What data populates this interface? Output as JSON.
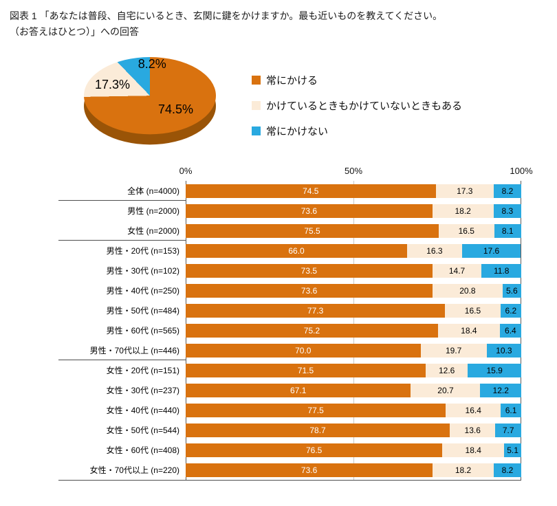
{
  "title": {
    "line1": "図表 1 「あなたは普段、自宅にいるとき、玄関に鍵をかけますか。最も近いものを教えてください。",
    "line2": "（お答えはひとつ）」への回答"
  },
  "colors": {
    "always_lock": "#D9720F",
    "sometimes": "#FBEBD8",
    "never_lock": "#29A9E0",
    "pie_depth": "#9A5407",
    "axis_line": "#595959",
    "gridline": "#C9C9C9",
    "separator": "#4D4D4D"
  },
  "legend": {
    "items": [
      {
        "label": "常にかける",
        "color": "#D9720F"
      },
      {
        "label": "かけているときもかけていないときもある",
        "color": "#FBEBD8"
      },
      {
        "label": "常にかけない",
        "color": "#29A9E0"
      }
    ]
  },
  "chart_data": [
    {
      "type": "pie",
      "style": "3d",
      "labels": [
        "常にかける",
        "かけているときもかけていないときもある",
        "常にかけない"
      ],
      "values": [
        74.5,
        17.3,
        8.2
      ],
      "unit": "%"
    },
    {
      "type": "bar",
      "stacked": true,
      "orientation": "horizontal",
      "xlim": [
        0,
        100
      ],
      "x_ticks": [
        "0%",
        "50%",
        "100%"
      ],
      "grid": "vertical-50",
      "categories": [
        "全体 (n=4000)",
        "男性 (n=2000)",
        "女性 (n=2000)",
        "男性・20代 (n=153)",
        "男性・30代 (n=102)",
        "男性・40代 (n=250)",
        "男性・50代 (n=484)",
        "男性・60代 (n=565)",
        "男性・70代以上 (n=446)",
        "女性・20代 (n=151)",
        "女性・30代 (n=237)",
        "女性・40代 (n=440)",
        "女性・50代 (n=544)",
        "女性・60代 (n=408)",
        "女性・70代以上 (n=220)"
      ],
      "series": [
        {
          "name": "常にかける",
          "values": [
            74.5,
            73.6,
            75.5,
            66.0,
            73.5,
            73.6,
            77.3,
            75.2,
            70.0,
            71.5,
            67.1,
            77.5,
            78.7,
            76.5,
            73.6
          ]
        },
        {
          "name": "かけているときもかけていないときもある",
          "values": [
            17.3,
            18.2,
            16.5,
            16.3,
            14.7,
            20.8,
            16.5,
            18.4,
            19.7,
            12.6,
            20.7,
            16.4,
            13.6,
            18.4,
            18.2
          ]
        },
        {
          "name": "常にかけない",
          "values": [
            8.2,
            8.3,
            8.1,
            17.6,
            11.8,
            5.6,
            6.2,
            6.4,
            10.3,
            15.9,
            12.2,
            6.1,
            7.7,
            5.1,
            8.2
          ]
        }
      ],
      "group_separators_after": [
        0,
        2,
        8
      ]
    }
  ]
}
